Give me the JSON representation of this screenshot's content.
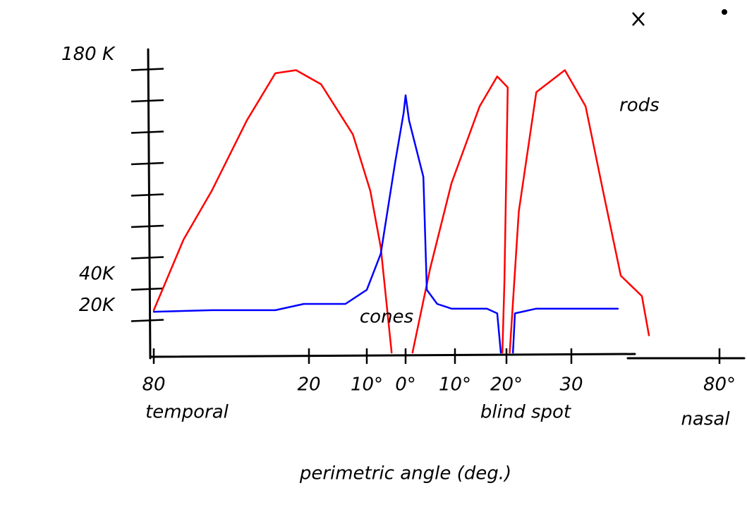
{
  "chart_data": {
    "type": "line",
    "xlabel": "perimetric angle (deg.)",
    "xlim": [
      -80,
      80
    ],
    "xticks": [
      {
        "value": -80,
        "label": "80"
      },
      {
        "value": -20,
        "label": "20"
      },
      {
        "value": -10,
        "label": "10°"
      },
      {
        "value": 0,
        "label": "0°"
      },
      {
        "value": 10,
        "label": "10°"
      },
      {
        "value": 20,
        "label": "20°"
      },
      {
        "value": 30,
        "label": "30"
      },
      {
        "value": 80,
        "label": "80°"
      }
    ],
    "region_labels": [
      "temporal",
      "blind spot",
      "nasal"
    ],
    "ylim": [
      0,
      200
    ],
    "yticks": [
      {
        "value": 20,
        "label": "20K"
      },
      {
        "value": 40,
        "label": "40K"
      },
      {
        "value": 180,
        "label": "180 K"
      }
    ],
    "yminor_ticks": [
      60,
      80,
      100,
      120,
      140,
      160
    ],
    "series": [
      {
        "name": "rods",
        "color": "#ff0000",
        "x": [
          -80,
          -68.5,
          -57.6,
          -44,
          -33,
          -25,
          -17.9,
          -12.4,
          -9.1,
          -6.4,
          -3.6,
          null,
          1.4,
          5,
          9.3,
          14.8,
          18.2,
          20.2,
          19.6,
          19.2,
          null,
          20.5,
          21.9,
          24.6,
          29,
          34.8,
          40.7,
          46.7,
          53.8,
          56.2
        ],
        "values": [
          27,
          72,
          103,
          148,
          178,
          180,
          171,
          139,
          103,
          67,
          0,
          null,
          0,
          54,
          108,
          157,
          176,
          169,
          45,
          0,
          null,
          0,
          90,
          166,
          180,
          157,
          103,
          49,
          36,
          11
        ]
      },
      {
        "name": "cones",
        "color": "#0000ff",
        "x": [
          -80,
          -57.6,
          -33,
          -22,
          -13.7,
          -10,
          -6.4,
          -2.7,
          -0.5,
          0,
          0.7,
          3.6,
          4.3,
          6.4,
          9.3,
          16.2,
          18.2,
          18.9,
          null,
          21,
          21.3,
          24.6,
          45.7
        ],
        "values": [
          26,
          27,
          27,
          31,
          31,
          40,
          63,
          121,
          153,
          164,
          148,
          112,
          40,
          31,
          28,
          28,
          25,
          0,
          null,
          0,
          25,
          28,
          28
        ]
      }
    ]
  }
}
